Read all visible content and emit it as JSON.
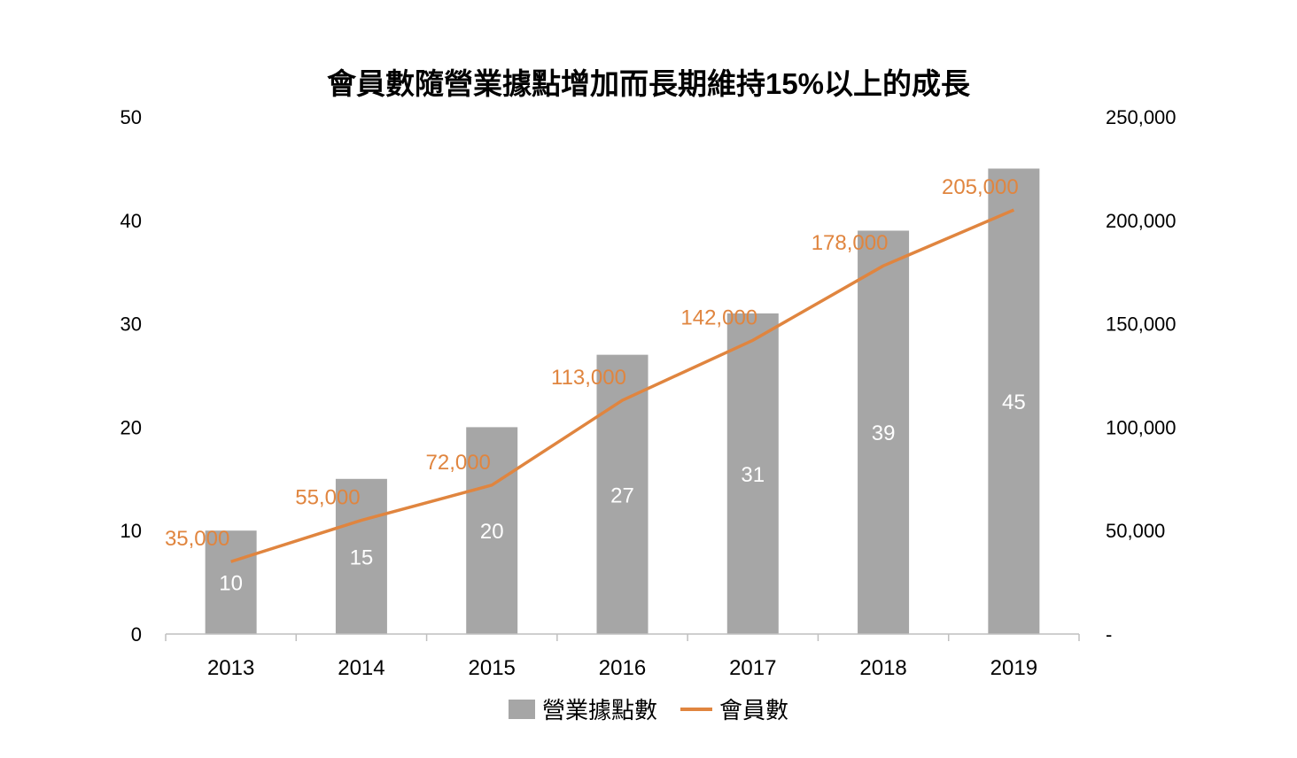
{
  "chart_data": {
    "type": "bar+line",
    "title": "會員數隨營業據點增加而長期維持15%以上的成長",
    "categories": [
      "2013",
      "2014",
      "2015",
      "2016",
      "2017",
      "2018",
      "2019"
    ],
    "series": [
      {
        "name": "營業據點數",
        "type": "bar",
        "axis": "left",
        "color": "#a6a6a6",
        "values": [
          10,
          15,
          20,
          27,
          31,
          39,
          45
        ],
        "labels": [
          "10",
          "15",
          "20",
          "27",
          "31",
          "39",
          "45"
        ]
      },
      {
        "name": "會員數",
        "type": "line",
        "axis": "right",
        "color": "#e0853f",
        "values": [
          35000,
          55000,
          72000,
          113000,
          142000,
          178000,
          205000
        ],
        "labels": [
          "35,000",
          "55,000",
          "72,000",
          "113,000",
          "142,000",
          "178,000",
          "205,000"
        ]
      }
    ],
    "y_left": {
      "min": 0,
      "max": 50,
      "ticks": [
        "0",
        "10",
        "20",
        "30",
        "40",
        "50"
      ]
    },
    "y_right": {
      "min": 0,
      "max": 250000,
      "ticks": [
        "-",
        "50,000",
        "100,000",
        "150,000",
        "200,000",
        "250,000"
      ]
    },
    "grid": false,
    "legend_position": "bottom"
  }
}
